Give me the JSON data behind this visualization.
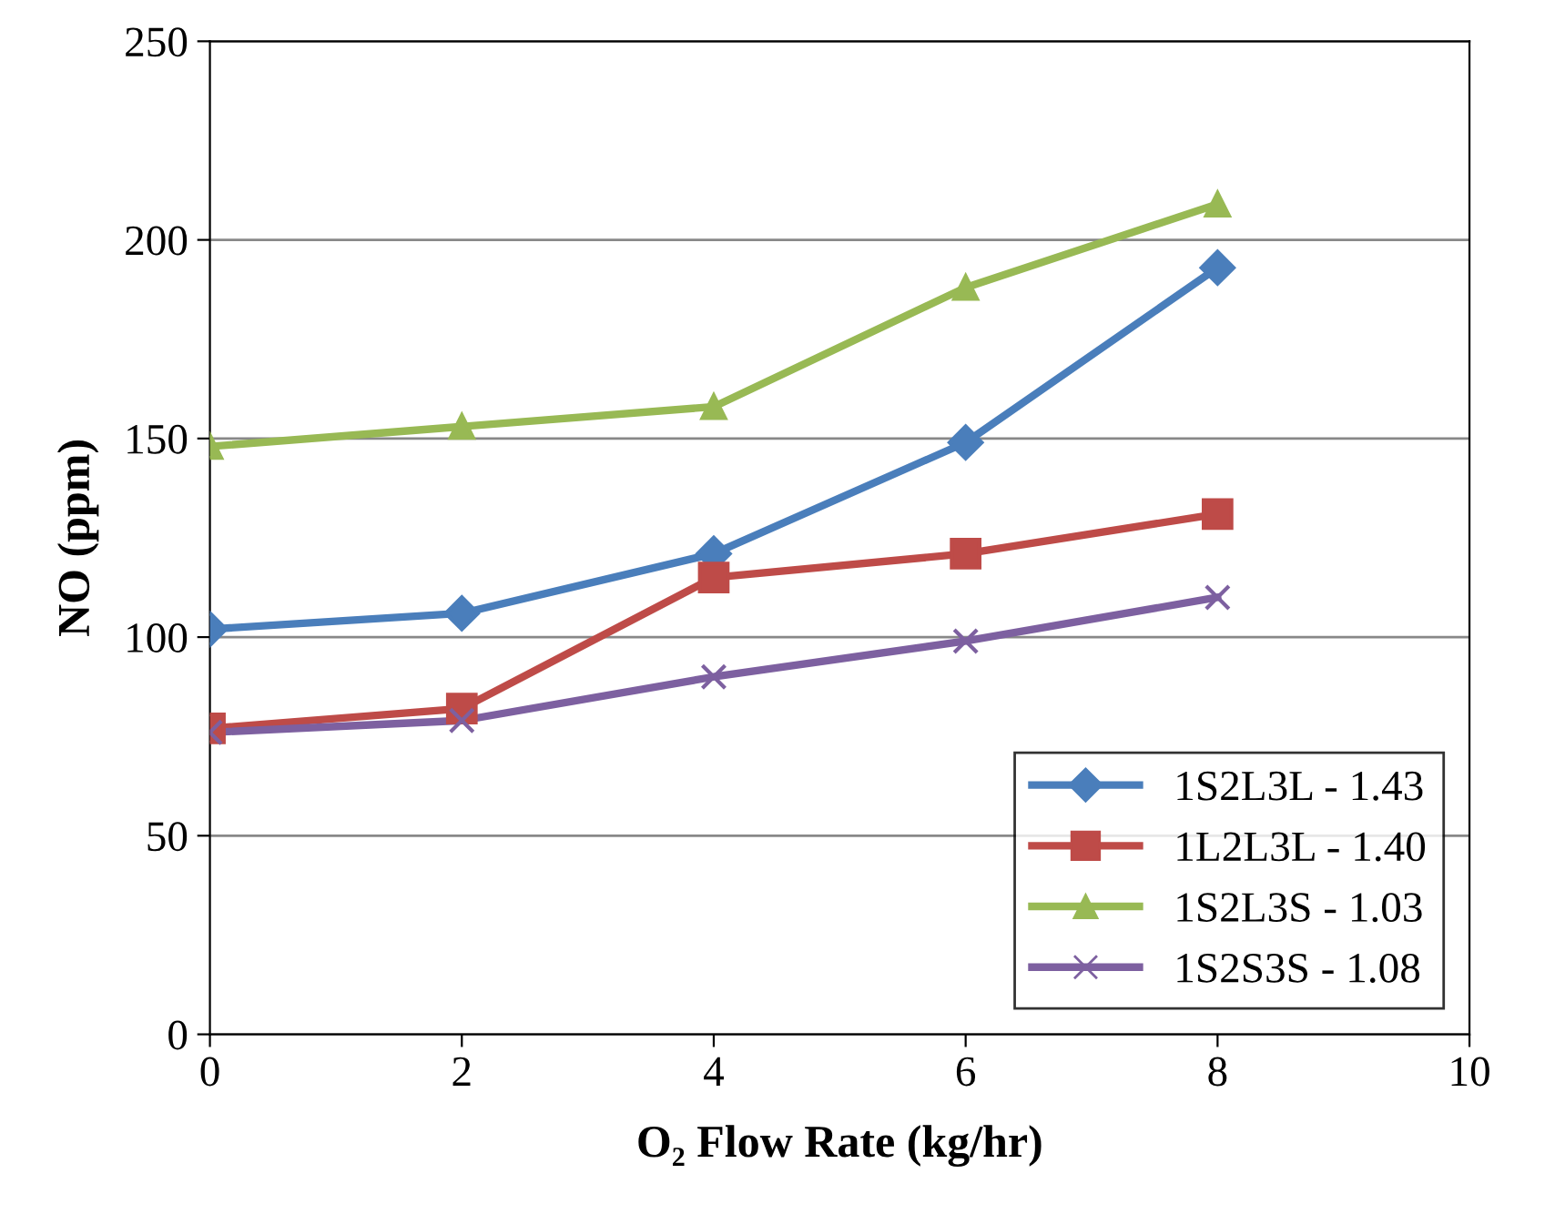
{
  "chart_data": {
    "type": "line",
    "xlabel": "O₂ Flow Rate (kg/hr)",
    "ylabel": "NO (ppm)",
    "x": [
      0,
      2,
      4,
      6,
      8
    ],
    "xlim": [
      0,
      10
    ],
    "xticks": [
      0,
      2,
      4,
      6,
      8,
      10
    ],
    "ylim": [
      0,
      250
    ],
    "yticks": [
      0,
      50,
      100,
      150,
      200,
      250
    ],
    "grid": "y",
    "legend": "bottom right",
    "line_style": "solid",
    "series": [
      {
        "name": "1S2L3L - 1.43",
        "color": "#4a7ebb",
        "marker": "diamond",
        "values": [
          102,
          106,
          121,
          149,
          193
        ]
      },
      {
        "name": "1L2L3L - 1.40",
        "color": "#be4b48",
        "marker": "square",
        "values": [
          77,
          82,
          115,
          121,
          131
        ]
      },
      {
        "name": "1S2L3S - 1.03",
        "color": "#98b954",
        "marker": "triangle",
        "values": [
          148,
          153,
          158,
          188,
          209
        ]
      },
      {
        "name": "1S2S3S - 1.08",
        "color": "#7d60a0",
        "marker": "cross",
        "values": [
          76,
          79,
          90,
          99,
          110
        ]
      }
    ]
  }
}
